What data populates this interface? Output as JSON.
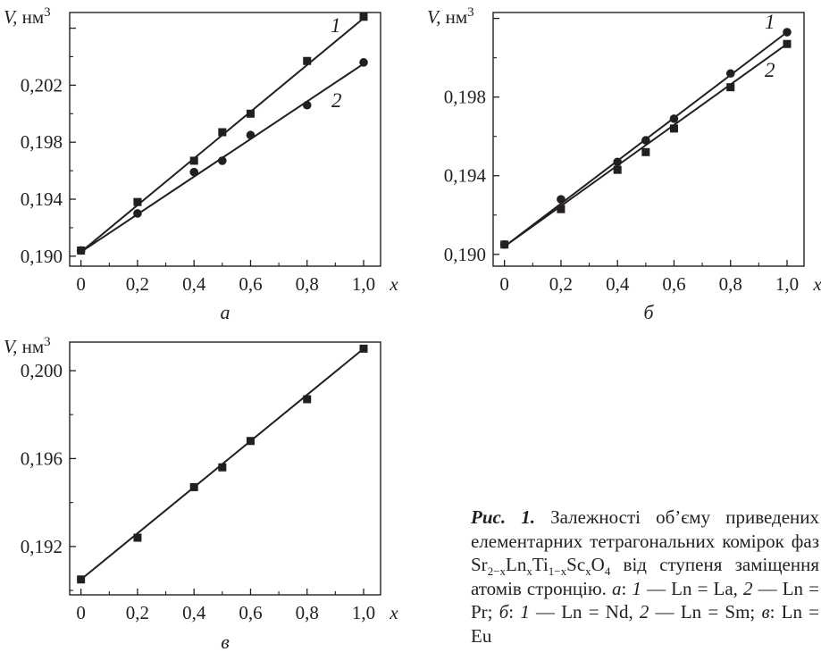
{
  "figure": {
    "caption_title": "Рис. 1.",
    "caption_parts": [
      {
        "t": "Залежності об’єму приведених елементарних тетрагональних комірок фаз Sr",
        "s": "n"
      },
      {
        "t": "2−x",
        "s": "sub"
      },
      {
        "t": "Ln",
        "s": "n"
      },
      {
        "t": "x",
        "s": "sub"
      },
      {
        "t": "Ti",
        "s": "n"
      },
      {
        "t": "1−x",
        "s": "sub"
      },
      {
        "t": "Sc",
        "s": "n"
      },
      {
        "t": "x",
        "s": "sub"
      },
      {
        "t": "O",
        "s": "n"
      },
      {
        "t": "4",
        "s": "sub"
      },
      {
        "t": " від ступеня заміщення атомів стронцію. ",
        "s": "n"
      },
      {
        "t": "а",
        "s": "i"
      },
      {
        "t": ": ",
        "s": "n"
      },
      {
        "t": "1",
        "s": "i"
      },
      {
        "t": " — Ln = La, ",
        "s": "n"
      },
      {
        "t": "2",
        "s": "i"
      },
      {
        "t": " — Ln = Pr; ",
        "s": "n"
      },
      {
        "t": "б",
        "s": "i"
      },
      {
        "t": ": ",
        "s": "n"
      },
      {
        "t": "1",
        "s": "i"
      },
      {
        "t": " — Ln = Nd, ",
        "s": "n"
      },
      {
        "t": "2",
        "s": "i"
      },
      {
        "t": " — Ln = Sm; ",
        "s": "n"
      },
      {
        "t": "в",
        "s": "i"
      },
      {
        "t": ": Ln = Eu",
        "s": "n"
      }
    ]
  },
  "chart_data": [
    {
      "type": "scatter",
      "panel_label": "а",
      "ylabel": "V, нм3",
      "xlabel": "x",
      "xlim": [
        -0.04,
        1.06
      ],
      "ylim": [
        0.1893,
        0.2071
      ],
      "xticks": [
        0,
        0.2,
        0.4,
        0.6,
        0.8,
        1.0
      ],
      "xtick_labels": [
        "0",
        "0,2",
        "0,4",
        "0,6",
        "0,8",
        "1,0"
      ],
      "yticks": [
        0.19,
        0.194,
        0.198,
        0.202,
        0.206
      ],
      "ytick_labels": [
        "0,190",
        "0,194",
        "0,198",
        "0,202",
        ""
      ],
      "series": [
        {
          "name": "1",
          "marker": "square",
          "x": [
            0,
            0.2,
            0.4,
            0.5,
            0.6,
            0.8,
            1.0
          ],
          "y": [
            0.1904,
            0.1938,
            0.1967,
            0.1987,
            0.2,
            0.2037,
            0.2068
          ],
          "fit": [
            [
              0,
              0.1903
            ],
            [
              1.0,
              0.2067
            ]
          ]
        },
        {
          "name": "2",
          "marker": "circle",
          "x": [
            0,
            0.2,
            0.4,
            0.5,
            0.6,
            0.8,
            1.0
          ],
          "y": [
            0.1904,
            0.193,
            0.1959,
            0.1967,
            0.1985,
            0.2006,
            0.2036
          ],
          "fit": [
            [
              0,
              0.1903
            ],
            [
              1.0,
              0.2035
            ]
          ]
        }
      ],
      "grid": false
    },
    {
      "type": "scatter",
      "panel_label": "б",
      "ylabel": "V, нм3",
      "xlabel": "x",
      "xlim": [
        -0.04,
        1.06
      ],
      "ylim": [
        0.1894,
        0.2023
      ],
      "xticks": [
        0,
        0.2,
        0.4,
        0.6,
        0.8,
        1.0
      ],
      "xtick_labels": [
        "0",
        "0,2",
        "0,4",
        "0,6",
        "0,8",
        "1,0"
      ],
      "yticks": [
        0.19,
        0.194,
        0.198,
        0.202
      ],
      "ytick_labels": [
        "0,190",
        "0,194",
        "0,198",
        ""
      ],
      "series": [
        {
          "name": "1",
          "marker": "circle",
          "x": [
            0,
            0.2,
            0.4,
            0.5,
            0.6,
            0.8,
            1.0
          ],
          "y": [
            0.1905,
            0.1928,
            0.1947,
            0.1958,
            0.1969,
            0.1992,
            0.2013
          ],
          "fit": [
            [
              0,
              0.1904
            ],
            [
              1.0,
              0.2013
            ]
          ]
        },
        {
          "name": "2",
          "marker": "square",
          "x": [
            0,
            0.2,
            0.4,
            0.5,
            0.6,
            0.8,
            1.0
          ],
          "y": [
            0.1905,
            0.1923,
            0.1943,
            0.1952,
            0.1964,
            0.1985,
            0.2007
          ],
          "fit": [
            [
              0,
              0.1904
            ],
            [
              1.0,
              0.2007
            ]
          ]
        }
      ],
      "grid": false
    },
    {
      "type": "scatter",
      "panel_label": "в",
      "ylabel": "V, нм3",
      "xlabel": "x",
      "xlim": [
        -0.04,
        1.06
      ],
      "ylim": [
        0.1898,
        0.2013
      ],
      "xticks": [
        0,
        0.2,
        0.4,
        0.6,
        0.8,
        1.0
      ],
      "xtick_labels": [
        "0",
        "0,2",
        "0,4",
        "0,6",
        "0,8",
        "1,0"
      ],
      "yticks": [
        0.192,
        0.196,
        0.2
      ],
      "ytick_labels": [
        "0,192",
        "0,196",
        "0,200"
      ],
      "series": [
        {
          "name": "",
          "marker": "square",
          "x": [
            0,
            0.2,
            0.4,
            0.5,
            0.6,
            0.8,
            1.0
          ],
          "y": [
            0.1905,
            0.1924,
            0.1947,
            0.1956,
            0.1968,
            0.1987,
            0.201
          ],
          "fit": [
            [
              0,
              0.1905
            ],
            [
              1.0,
              0.201
            ]
          ]
        }
      ],
      "grid": false
    }
  ]
}
